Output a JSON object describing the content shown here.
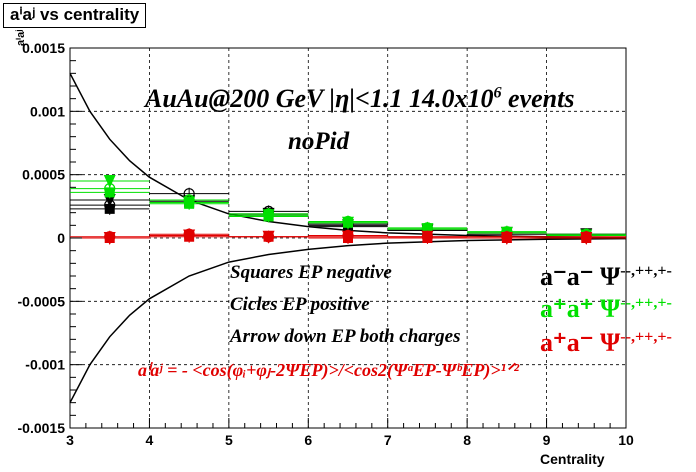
{
  "title": "aⁱaʲ vs centrality",
  "xlabel": "Centrality",
  "ylabel": "aⁱaʲ",
  "annotations": {
    "header_1": "AuAu@200 GeV |η|<1.1 14.0x10",
    "header_1_exp": "6",
    "header_1_tail": " events",
    "header_2": "noPid",
    "note_squares": "Squares EP negative",
    "note_circles": "Cicles EP positive",
    "note_arrows": "Arrow down EP both charges",
    "formula": "aⁱaʲ = - <cos(φᵢ+φⱼ-2ΨEP)>/<cos2(ΨᵃEP-ΨᵇEP)>¹ᐟ²"
  },
  "legend": [
    {
      "label": "a⁻a⁻",
      "psi": "Ψ",
      "sup": "--,++,+-",
      "color": "#000000"
    },
    {
      "label": "a⁺a⁺",
      "psi": "Ψ",
      "sup": "--,++,+-",
      "color": "#00e000"
    },
    {
      "label": "a⁺a⁻",
      "psi": "Ψ",
      "sup": "--,++,+-",
      "color": "#e00000"
    }
  ],
  "chart_data": {
    "type": "scatter",
    "xlim": [
      3,
      10
    ],
    "ylim": [
      -0.0015,
      0.0015
    ],
    "grid": true,
    "x_ticks": [
      "3",
      "4",
      "5",
      "6",
      "7",
      "8",
      "9",
      "10"
    ],
    "y_ticks": [
      "-0.0015",
      "-0.001",
      "-0.0005",
      "0",
      "0.0005",
      "0.001",
      "0.0015"
    ],
    "x": [
      3.5,
      4.5,
      5.5,
      6.5,
      7.5,
      8.5,
      9.5
    ],
    "series": [
      {
        "name": "a⁻a⁻",
        "color": "#000000",
        "marker": "square",
        "ep": "negative",
        "values": [
          0.00023,
          0.00028,
          0.00018,
          9e-05,
          6e-05,
          3e-05,
          2e-05
        ]
      },
      {
        "name": "a⁻a⁻",
        "color": "#000000",
        "marker": "circle",
        "ep": "positive",
        "values": [
          0.00026,
          0.00035,
          0.00021,
          0.00011,
          7e-05,
          4e-05,
          3e-05
        ]
      },
      {
        "name": "a⁻a⁻",
        "color": "#000000",
        "marker": "arrow-down",
        "ep": "both",
        "values": [
          0.0003,
          0.00029,
          0.00019,
          0.0001,
          6e-05,
          4e-05,
          3e-05
        ]
      },
      {
        "name": "a⁺a⁺",
        "color": "#00e000",
        "marker": "square",
        "ep": "negative",
        "values": [
          0.00036,
          0.00027,
          0.00017,
          0.00012,
          7e-05,
          4e-05,
          2e-05
        ]
      },
      {
        "name": "a⁺a⁺",
        "color": "#00e000",
        "marker": "circle",
        "ep": "positive",
        "values": [
          0.00039,
          0.0003,
          0.00019,
          0.00013,
          8e-05,
          5e-05,
          3e-05
        ]
      },
      {
        "name": "a⁺a⁺",
        "color": "#00e000",
        "marker": "arrow-down",
        "ep": "both",
        "values": [
          0.00045,
          0.00028,
          0.00018,
          0.00012,
          7e-05,
          4e-05,
          2e-05
        ]
      },
      {
        "name": "a⁺a⁻",
        "color": "#e00000",
        "marker": "square",
        "ep": "negative",
        "values": [
          0.0,
          1e-05,
          1e-05,
          0.0,
          0.0,
          0.0,
          0.0
        ]
      },
      {
        "name": "a⁺a⁻",
        "color": "#e00000",
        "marker": "circle",
        "ep": "positive",
        "values": [
          1e-05,
          3e-05,
          1e-05,
          2e-05,
          1e-05,
          1e-05,
          1e-05
        ]
      },
      {
        "name": "a⁺a⁻",
        "color": "#e00000",
        "marker": "arrow-down",
        "ep": "both",
        "values": [
          0.0,
          2e-05,
          1e-05,
          1e-05,
          1e-05,
          0.0,
          0.0
        ]
      }
    ],
    "curves": [
      {
        "color": "#000000",
        "x": [
          3.0,
          3.25,
          3.5,
          3.75,
          4.0,
          4.5,
          5.0,
          5.5,
          6.0,
          6.5,
          7.0,
          8.0,
          9.0,
          10.0
        ],
        "values": [
          0.0013,
          0.001,
          0.00078,
          0.00061,
          0.00048,
          0.0003,
          0.00019,
          0.00013,
          9e-05,
          6e-05,
          4e-05,
          2e-05,
          1e-05,
          5e-06
        ]
      },
      {
        "color": "#000000",
        "x": [
          3.0,
          3.25,
          3.5,
          3.75,
          4.0,
          4.5,
          5.0,
          5.5,
          6.0,
          6.5,
          7.0,
          8.0,
          9.0,
          10.0
        ],
        "values": [
          -0.0013,
          -0.001,
          -0.00078,
          -0.00061,
          -0.00048,
          -0.0003,
          -0.00019,
          -0.00013,
          -9e-05,
          -6e-05,
          -4e-05,
          -2e-05,
          -1e-05,
          -5e-06
        ]
      }
    ]
  }
}
